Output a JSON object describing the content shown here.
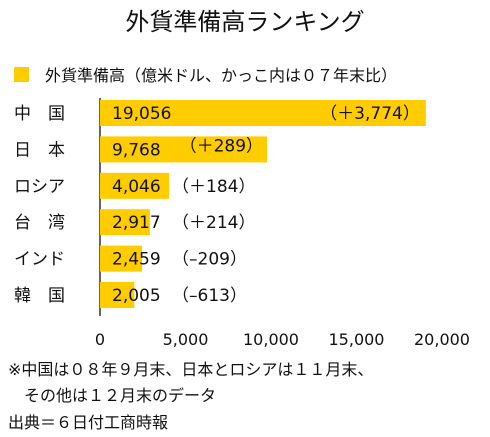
{
  "chart_data": {
    "type": "bar",
    "orientation": "horizontal",
    "title": "外貨準備高ランキング",
    "legend": {
      "label": "外貨準備高（億米ドル、かっこ内は０７年末比）",
      "color": "#FFCC00"
    },
    "categories": [
      "中　国",
      "日　本",
      "ロシア",
      "台　湾",
      "インド",
      "韓　国"
    ],
    "values": [
      19056,
      9768,
      4046,
      2917,
      2459,
      2005
    ],
    "value_labels": [
      "19,056",
      "9,768",
      "4,046",
      "2,917",
      "2,459",
      "2,005"
    ],
    "change_labels": [
      "（＋3,774）",
      "（＋289）",
      "（＋184）",
      "（＋214）",
      "（–209）",
      "（–613）"
    ],
    "xlim": [
      0,
      20000
    ],
    "xticks": [
      0,
      5000,
      10000,
      15000,
      20000
    ],
    "xtick_labels": [
      "0",
      "5,000",
      "10,000",
      "15,000",
      "20,000"
    ],
    "grid": false,
    "bar_color": "#FFCC00"
  },
  "notes": [
    "※中国は０８年９月末、日本とロシアは１１月末、",
    "　その他は１２月末のデータ",
    "出典＝６日付工商時報"
  ]
}
